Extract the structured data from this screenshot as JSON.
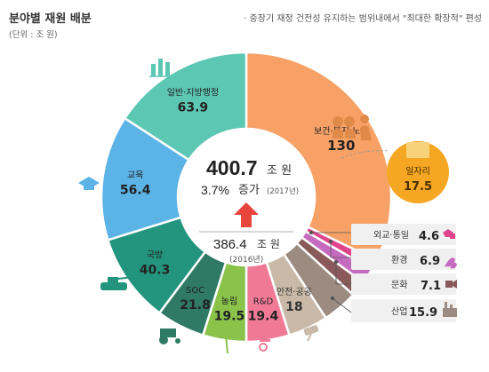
{
  "header": {
    "title": "분야별 재원 배분",
    "unit": "(단위 : 조 원)",
    "note": "· 중장기 재정 건전성 유지하는 범위내에서 \"최대한 확장적\" 편성"
  },
  "center": {
    "total_2017": "400.7",
    "total_2017_unit": "조 원",
    "growth": "3.7%",
    "growth_label": "증가",
    "growth_year": "(2017년)",
    "total_2016": "386.4",
    "total_2016_unit": "조 원",
    "year_2016": "(2016년)"
  },
  "chart_data": {
    "type": "pie",
    "variant": "donut",
    "slices": [
      {
        "label": "보건·복지·노동",
        "value": 130,
        "value_text": "130",
        "color": "#f7a166"
      },
      {
        "label": "외교·통일",
        "value": 4.6,
        "value_text": "4.6",
        "color": "#e0448c"
      },
      {
        "label": "환경",
        "value": 6.9,
        "value_text": "6.9",
        "color": "#c46bbf"
      },
      {
        "label": "문화",
        "value": 7.1,
        "value_text": "7.1",
        "color": "#8a5a5a"
      },
      {
        "label": "산업",
        "value": 15.9,
        "value_text": "15.9",
        "color": "#9c8b80"
      },
      {
        "label": "안전·공공",
        "value": 18,
        "value_text": "18",
        "color": "#c9b9a8"
      },
      {
        "label": "R&D",
        "value": 19.4,
        "value_text": "19.4",
        "color": "#f07a96"
      },
      {
        "label": "농림",
        "value": 19.5,
        "value_text": "19.5",
        "color": "#8bc34a"
      },
      {
        "label": "SOC",
        "value": 21.8,
        "value_text": "21.8",
        "color": "#2f7a64"
      },
      {
        "label": "국방",
        "value": 40.3,
        "value_text": "40.3",
        "color": "#23957e"
      },
      {
        "label": "교육",
        "value": 56.4,
        "value_text": "56.4",
        "color": "#5bb3e6"
      },
      {
        "label": "일반·지방행정",
        "value": 63.9,
        "value_text": "63.9",
        "color": "#5cc7b3"
      }
    ],
    "sub_item": {
      "label": "일자리",
      "value": 17.5,
      "value_text": "17.5",
      "color": "#f5a623",
      "parent": "보건·복지·노동"
    }
  },
  "colors": {
    "arrow": "#e8463c",
    "icon": "#5cc7b3",
    "icon_orange": "#e08a4a",
    "text_dark": "#333333"
  }
}
